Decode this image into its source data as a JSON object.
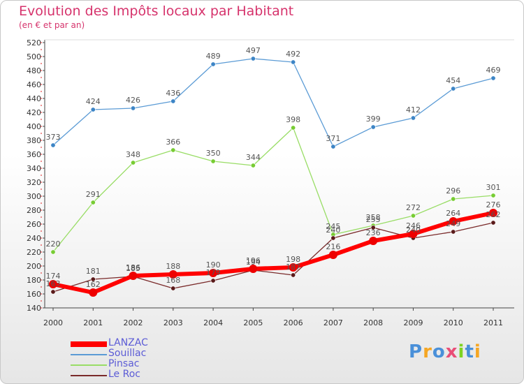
{
  "chart_data": {
    "type": "line",
    "title": "Evolution des Impôts locaux par Habitant",
    "subtitle": "(en € et par an)",
    "x": [
      "2000",
      "2001",
      "2002",
      "2003",
      "2004",
      "2005",
      "2006",
      "2007",
      "2008",
      "2009",
      "2010",
      "2011"
    ],
    "yticks": [
      140,
      160,
      180,
      200,
      220,
      240,
      260,
      280,
      300,
      320,
      340,
      360,
      380,
      400,
      420,
      440,
      460,
      480,
      500,
      520
    ],
    "ylim": [
      140,
      520
    ],
    "grid": false,
    "legend_position": "bottom-left",
    "series": [
      {
        "name": "Souillac",
        "color": "#5b9bd5",
        "marker": "#3d85c6",
        "values": [
          373,
          424,
          426,
          436,
          489,
          497,
          492,
          371,
          399,
          412,
          454,
          469
        ]
      },
      {
        "name": "Pinsac",
        "color": "#99dd66",
        "marker": "#77cc33",
        "values": [
          220,
          291,
          348,
          366,
          350,
          344,
          398,
          245,
          258,
          272,
          296,
          301
        ]
      },
      {
        "name": "Le Roc",
        "color": "#7a2a2a",
        "marker": "#5a1a1a",
        "values": [
          163,
          181,
          185,
          168,
          179,
          194,
          187,
          240,
          255,
          240,
          249,
          262
        ]
      },
      {
        "name": "LANZAC",
        "color": "#ff0000",
        "marker": "#ee0000",
        "values": [
          174,
          162,
          186,
          188,
          190,
          196,
          198,
          216,
          236,
          246,
          264,
          276
        ]
      }
    ]
  },
  "logo": {
    "letters": [
      {
        "ch": "P",
        "color": "#4a90d9"
      },
      {
        "ch": "r",
        "color": "#f5a623"
      },
      {
        "ch": "o",
        "color": "#4a90d9"
      },
      {
        "ch": "x",
        "color": "#e94e77"
      },
      {
        "ch": "i",
        "color": "#7ed321"
      },
      {
        "ch": "t",
        "color": "#4a90d9"
      },
      {
        "ch": "i",
        "color": "#f5a623"
      }
    ]
  }
}
